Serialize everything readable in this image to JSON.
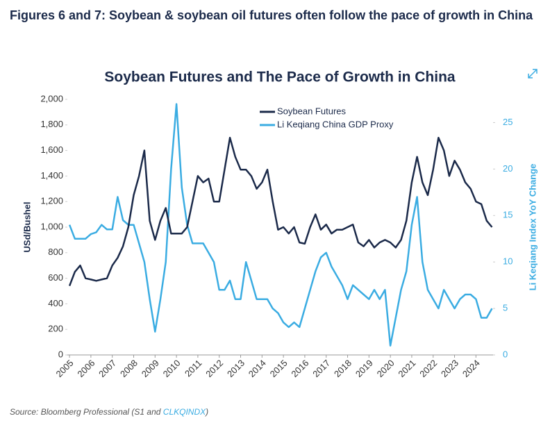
{
  "header": {
    "title": "Figures 6 and 7: Soybean & soybean oil futures often follow the pace of growth in China"
  },
  "source": {
    "prefix": "Source: Bloomberg Professional (S1 and",
    "link": "CLKQINDX",
    "suffix": ")"
  },
  "chart_data": {
    "type": "line",
    "title": "Soybean Futures and The Pace of Growth in China",
    "ylabel": "USd/Bushel",
    "y2label": "Li Keqiang Index YoY Change",
    "x": [
      2005,
      2005.25,
      2005.5,
      2005.75,
      2006,
      2006.25,
      2006.5,
      2006.75,
      2007,
      2007.25,
      2007.5,
      2007.75,
      2008,
      2008.25,
      2008.5,
      2008.75,
      2009,
      2009.25,
      2009.5,
      2009.75,
      2010,
      2010.25,
      2010.5,
      2010.75,
      2011,
      2011.25,
      2011.5,
      2011.75,
      2012,
      2012.25,
      2012.5,
      2012.75,
      2013,
      2013.25,
      2013.5,
      2013.75,
      2014,
      2014.25,
      2014.5,
      2014.75,
      2015,
      2015.25,
      2015.5,
      2015.75,
      2016,
      2016.25,
      2016.5,
      2016.75,
      2017,
      2017.25,
      2017.5,
      2017.75,
      2018,
      2018.25,
      2018.5,
      2018.75,
      2019,
      2019.25,
      2019.5,
      2019.75,
      2020,
      2020.25,
      2020.5,
      2020.75,
      2021,
      2021.25,
      2021.5,
      2021.75,
      2022,
      2022.25,
      2022.5,
      2022.75,
      2023,
      2023.25,
      2023.5,
      2023.75,
      2024,
      2024.25,
      2024.5,
      2024.75
    ],
    "series": [
      {
        "name": "Soybean Futures",
        "color": "#1b2a4a",
        "values": [
          540,
          650,
          700,
          600,
          590,
          580,
          590,
          600,
          700,
          760,
          850,
          1000,
          1250,
          1400,
          1600,
          1050,
          900,
          1050,
          1150,
          950,
          950,
          950,
          1000,
          1200,
          1400,
          1350,
          1380,
          1200,
          1200,
          1450,
          1700,
          1550,
          1450,
          1450,
          1400,
          1300,
          1350,
          1450,
          1200,
          980,
          1000,
          950,
          1000,
          880,
          870,
          1000,
          1100,
          980,
          1020,
          950,
          980,
          980,
          1000,
          1020,
          880,
          850,
          900,
          840,
          880,
          900,
          880,
          840,
          900,
          1050,
          1350,
          1550,
          1350,
          1250,
          1450,
          1700,
          1600,
          1400,
          1520,
          1450,
          1350,
          1300,
          1200,
          1180,
          1050,
          1000
        ]
      },
      {
        "name": "Li Keqiang China GDP Proxy",
        "color": "#3aace2",
        "axis": "y2",
        "values": [
          14,
          12.5,
          12.5,
          12.5,
          13,
          13.2,
          14,
          13.5,
          13.5,
          17,
          14.5,
          14,
          14,
          12,
          10,
          6,
          2.5,
          6,
          10,
          20,
          27,
          18,
          14,
          12,
          12,
          12,
          11,
          10,
          7,
          7,
          8,
          6,
          6,
          10,
          8,
          6,
          6,
          6,
          5,
          4.5,
          3.5,
          3,
          3.5,
          3,
          5,
          7,
          9,
          10.5,
          11,
          9.5,
          8.5,
          7.5,
          6,
          7.5,
          7,
          6.5,
          6,
          7,
          6,
          7,
          1,
          4,
          7,
          9,
          14,
          17,
          10,
          7,
          6,
          5,
          7,
          6,
          5,
          6,
          6.5,
          6.5,
          6,
          4,
          4,
          5
        ]
      }
    ],
    "xlim": [
      2004.9,
      2024.8
    ],
    "xticks": [
      2005,
      2006,
      2007,
      2008,
      2009,
      2010,
      2011,
      2012,
      2013,
      2014,
      2015,
      2016,
      2017,
      2018,
      2019,
      2020,
      2021,
      2022,
      2023,
      2024
    ],
    "ylim": [
      0,
      2000
    ],
    "yticks": [
      0,
      200,
      400,
      600,
      800,
      {
        "value": 1000,
        "label": "1,000"
      },
      {
        "value": 1200,
        "label": "1,200"
      },
      {
        "value": 1400,
        "label": "1,400"
      },
      {
        "value": 1600,
        "label": "1,600"
      },
      {
        "value": 1800,
        "label": "1,800"
      },
      {
        "value": 2000,
        "label": "2,000"
      }
    ],
    "y2lim": [
      0,
      27.5
    ],
    "y2ticks": [
      0,
      5,
      10,
      15,
      20,
      25
    ]
  }
}
